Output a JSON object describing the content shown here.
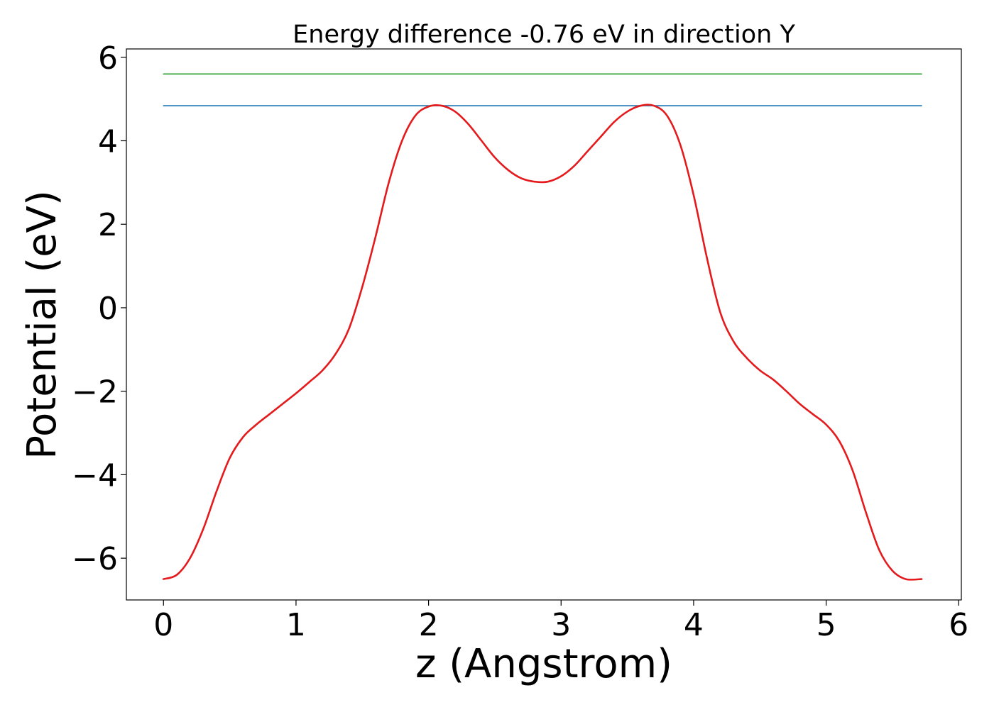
{
  "chart_data": {
    "type": "line",
    "title": "Energy difference -0.76 eV in direction Y",
    "xlabel": "z (Angstrom)",
    "ylabel": "Potential (eV)",
    "xlim": [
      -0.28,
      6.02
    ],
    "ylim": [
      -7.0,
      6.2
    ],
    "xticks": [
      0,
      1,
      2,
      3,
      4,
      5,
      6
    ],
    "yticks": [
      -6,
      -4,
      -2,
      0,
      2,
      4,
      6
    ],
    "xtick_labels": [
      "0",
      "1",
      "2",
      "3",
      "4",
      "5",
      "6"
    ],
    "ytick_labels": [
      "−6",
      "−4",
      "−2",
      "0",
      "2",
      "4",
      "6"
    ],
    "grid": false,
    "series": [
      {
        "color": "#2ca02c",
        "style": "horizontal",
        "x": [
          0,
          5.72
        ],
        "y": [
          5.6,
          5.6
        ]
      },
      {
        "color": "#1f77b4",
        "style": "horizontal",
        "x": [
          0,
          5.72
        ],
        "y": [
          4.84,
          4.84
        ]
      },
      {
        "color": "#e41a1c",
        "style": "curve",
        "x": [
          0.0,
          0.1,
          0.2,
          0.3,
          0.4,
          0.5,
          0.6,
          0.7,
          0.8,
          0.9,
          1.0,
          1.1,
          1.2,
          1.3,
          1.4,
          1.5,
          1.6,
          1.7,
          1.8,
          1.9,
          2.0,
          2.1,
          2.2,
          2.3,
          2.4,
          2.5,
          2.6,
          2.7,
          2.8,
          2.9,
          3.0,
          3.1,
          3.2,
          3.3,
          3.4,
          3.5,
          3.6,
          3.7,
          3.8,
          3.9,
          4.0,
          4.1,
          4.2,
          4.3,
          4.4,
          4.5,
          4.6,
          4.7,
          4.8,
          4.9,
          5.0,
          5.1,
          5.2,
          5.3,
          5.4,
          5.5,
          5.6,
          5.72
        ],
        "y": [
          -6.5,
          -6.4,
          -6.0,
          -5.3,
          -4.4,
          -3.6,
          -3.1,
          -2.8,
          -2.55,
          -2.3,
          -2.05,
          -1.78,
          -1.5,
          -1.1,
          -0.5,
          0.5,
          1.7,
          3.0,
          4.0,
          4.6,
          4.82,
          4.84,
          4.7,
          4.4,
          4.0,
          3.6,
          3.3,
          3.1,
          3.02,
          3.02,
          3.15,
          3.4,
          3.75,
          4.1,
          4.45,
          4.7,
          4.84,
          4.84,
          4.6,
          3.9,
          2.7,
          1.2,
          -0.1,
          -0.8,
          -1.2,
          -1.5,
          -1.72,
          -2.0,
          -2.3,
          -2.55,
          -2.8,
          -3.2,
          -3.9,
          -4.9,
          -5.8,
          -6.3,
          -6.5,
          -6.5
        ]
      }
    ]
  }
}
